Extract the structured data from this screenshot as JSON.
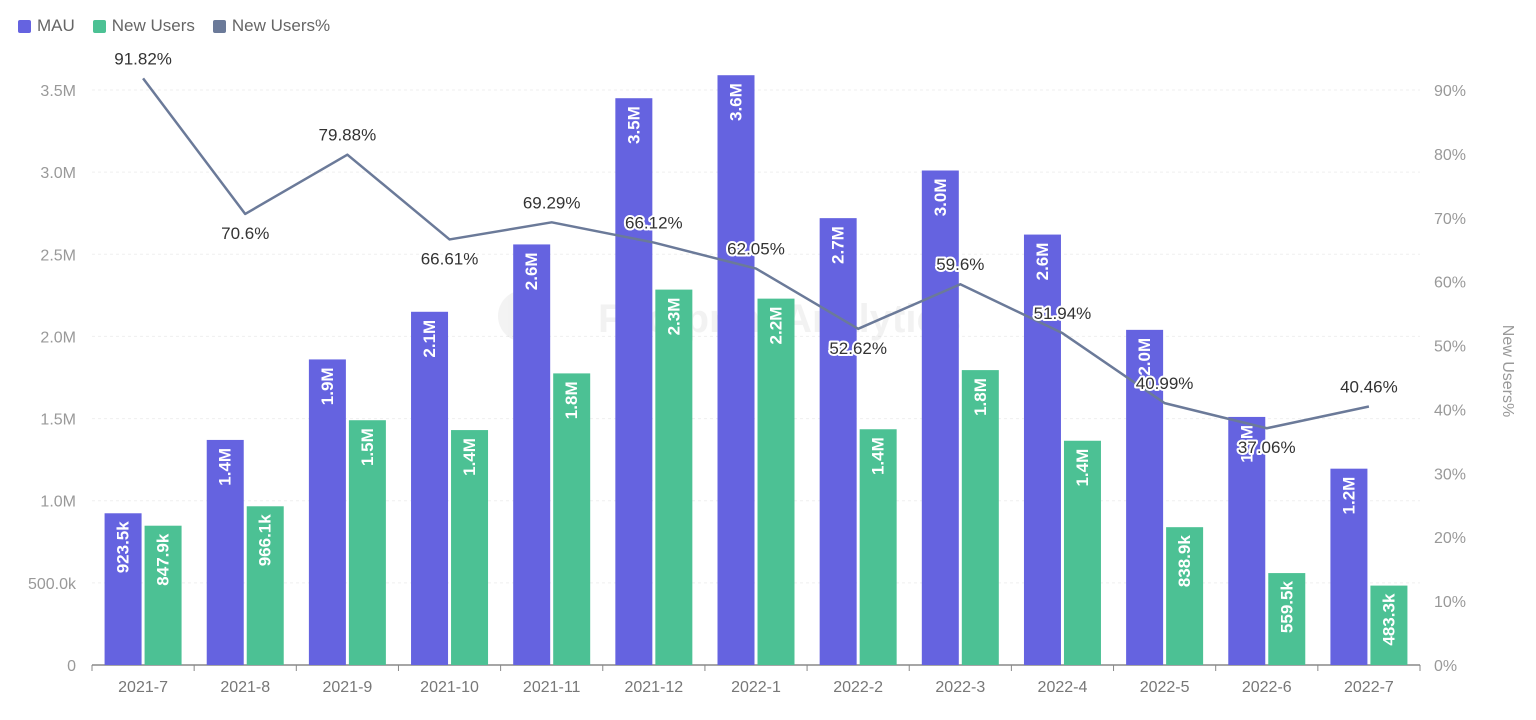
{
  "chart_data": {
    "type": "bar",
    "categories": [
      "2021-7",
      "2021-8",
      "2021-9",
      "2021-10",
      "2021-11",
      "2021-12",
      "2022-1",
      "2022-2",
      "2022-3",
      "2022-4",
      "2022-5",
      "2022-6",
      "2022-7"
    ],
    "series": [
      {
        "name": "MAU",
        "type": "bar",
        "axis": "left",
        "color": "#6563E0",
        "values": [
          923500,
          1370000,
          1860000,
          2150000,
          2560000,
          3450000,
          3590000,
          2720000,
          3010000,
          2620000,
          2040000,
          1510000,
          1195000
        ],
        "labels": [
          "923.5k",
          "1.4M",
          "1.9M",
          "2.1M",
          "2.6M",
          "3.5M",
          "3.6M",
          "2.7M",
          "3.0M",
          "2.6M",
          "2.0M",
          "1.5M",
          "1.2M"
        ]
      },
      {
        "name": "New Users",
        "type": "bar",
        "axis": "left",
        "color": "#4CC194",
        "values": [
          847900,
          966100,
          1490000,
          1430000,
          1775000,
          2285000,
          2230000,
          1435000,
          1795000,
          1365000,
          838900,
          559500,
          483300
        ],
        "labels": [
          "847.9k",
          "966.1k",
          "1.5M",
          "1.4M",
          "1.8M",
          "2.3M",
          "2.2M",
          "1.4M",
          "1.8M",
          "1.4M",
          "838.9k",
          "559.5k",
          "483.3k"
        ]
      },
      {
        "name": "New Users%",
        "type": "line",
        "axis": "right",
        "color": "#6B7A99",
        "values": [
          91.82,
          70.6,
          79.88,
          66.61,
          69.29,
          66.12,
          62.05,
          52.62,
          59.6,
          51.94,
          40.99,
          37.06,
          40.46
        ],
        "labels": [
          "91.82%",
          "70.6%",
          "79.88%",
          "66.61%",
          "69.29%",
          "66.12%",
          "62.05%",
          "52.62%",
          "59.6%",
          "51.94%",
          "40.99%",
          "37.06%",
          "40.46%"
        ]
      }
    ],
    "y_left": {
      "ylim": [
        0,
        3500000
      ],
      "ticks": [
        "0",
        "500.0k",
        "1.0M",
        "1.5M",
        "2.0M",
        "2.5M",
        "3.0M",
        "3.5M"
      ]
    },
    "y_right": {
      "ylim": [
        0,
        90
      ],
      "ticks": [
        "0%",
        "10%",
        "20%",
        "30%",
        "40%",
        "50%",
        "60%",
        "70%",
        "80%",
        "90%"
      ],
      "label": "New Users%"
    },
    "grid": true,
    "legend_position": "top-left",
    "watermark": "Footprint Analytics"
  }
}
